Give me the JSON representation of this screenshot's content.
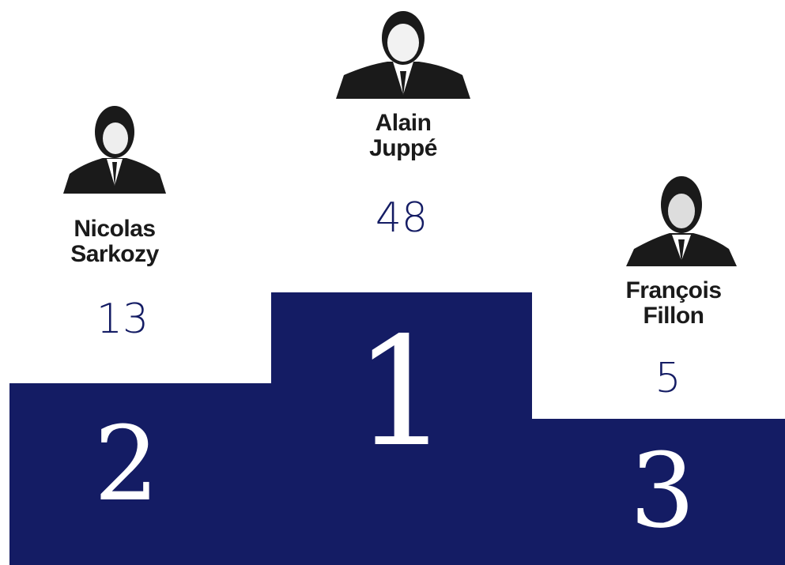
{
  "podium": [
    {
      "rank": 2,
      "name": "Nicolas Sarkozy",
      "score": 13
    },
    {
      "rank": 1,
      "name": "Alain Juppé",
      "score": 48
    },
    {
      "rank": 3,
      "name": "François Fillon",
      "score": 5
    }
  ]
}
